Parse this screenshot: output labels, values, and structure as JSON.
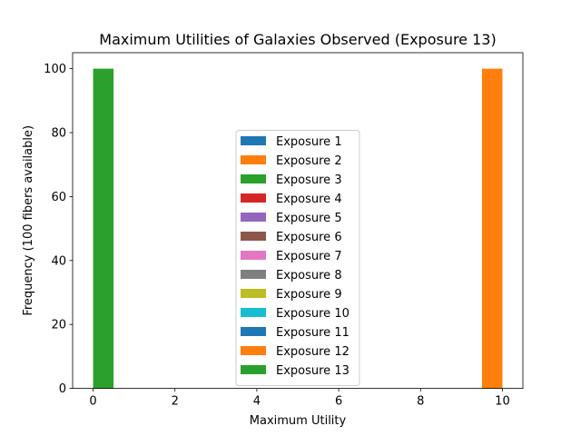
{
  "chart_data": {
    "type": "bar",
    "title": "Maximum Utilities of Galaxies Observed (Exposure 13)",
    "xlabel": "Maximum Utility",
    "ylabel": "Frequency (100 fibers available)",
    "xlim": [
      -0.5,
      10.5
    ],
    "ylim": [
      0,
      105
    ],
    "xticks": [
      0,
      2,
      4,
      6,
      8,
      10
    ],
    "yticks": [
      0,
      20,
      40,
      60,
      80,
      100
    ],
    "grid": false,
    "legend_position": "center-bottom",
    "series": [
      {
        "name": "Exposure 1",
        "color": "#1f77b4",
        "bars": []
      },
      {
        "name": "Exposure 2",
        "color": "#ff7f0e",
        "bars": [
          {
            "x0": 9.5,
            "x1": 10.0,
            "value": 100
          }
        ]
      },
      {
        "name": "Exposure 3",
        "color": "#2ca02c",
        "bars": []
      },
      {
        "name": "Exposure 4",
        "color": "#d62728",
        "bars": []
      },
      {
        "name": "Exposure 5",
        "color": "#9467bd",
        "bars": []
      },
      {
        "name": "Exposure 6",
        "color": "#8c564b",
        "bars": []
      },
      {
        "name": "Exposure 7",
        "color": "#e377c2",
        "bars": []
      },
      {
        "name": "Exposure 8",
        "color": "#7f7f7f",
        "bars": []
      },
      {
        "name": "Exposure 9",
        "color": "#bcbd22",
        "bars": []
      },
      {
        "name": "Exposure 10",
        "color": "#17becf",
        "bars": []
      },
      {
        "name": "Exposure 11",
        "color": "#1f77b4",
        "bars": []
      },
      {
        "name": "Exposure 12",
        "color": "#ff7f0e",
        "bars": []
      },
      {
        "name": "Exposure 13",
        "color": "#2ca02c",
        "bars": [
          {
            "x0": 0.0,
            "x1": 0.5,
            "value": 100
          }
        ]
      }
    ]
  }
}
